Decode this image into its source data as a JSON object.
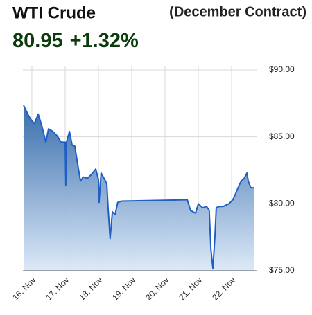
{
  "chart_data": {
    "type": "area",
    "title": "WTI Crude",
    "subtitle": "(December Contract)",
    "price": "80.95",
    "change": "+1.32%",
    "color": "#1f5fc4",
    "grid": true,
    "xlim": [
      15.73,
      22.75
    ],
    "xticks": [
      {
        "value": 16,
        "label": "16. Nov"
      },
      {
        "value": 17,
        "label": "17. Nov"
      },
      {
        "value": 18,
        "label": "18. Nov"
      },
      {
        "value": 19,
        "label": "19. Nov"
      },
      {
        "value": 20,
        "label": "20. Nov"
      },
      {
        "value": 21,
        "label": "21. Nov"
      },
      {
        "value": 22,
        "label": "22. Nov"
      }
    ],
    "ylim": [
      75,
      90
    ],
    "yticks": [
      {
        "value": 75,
        "label": "$75.00"
      },
      {
        "value": 80,
        "label": "$80.00"
      },
      {
        "value": 85,
        "label": "$85.00"
      },
      {
        "value": 90,
        "label": "$90.00"
      }
    ],
    "x": [
      15.75,
      15.83,
      15.92,
      16.0,
      16.08,
      16.19,
      16.29,
      16.42,
      16.5,
      16.63,
      16.75,
      16.88,
      17.0,
      17.02,
      17.04,
      17.13,
      17.21,
      17.29,
      17.38,
      17.46,
      17.54,
      17.67,
      17.79,
      17.92,
      18.0,
      18.02,
      18.08,
      18.17,
      18.25,
      18.29,
      18.35,
      18.42,
      18.5,
      18.58,
      18.69,
      20.67,
      20.77,
      20.92,
      21.0,
      21.13,
      21.25,
      21.33,
      21.38,
      21.44,
      21.5,
      21.54,
      21.63,
      21.75,
      21.92,
      22.04,
      22.13,
      22.21,
      22.29,
      22.38,
      22.46,
      22.5,
      22.58,
      22.67
    ],
    "values": [
      87.36,
      86.95,
      86.5,
      86.2,
      86.0,
      86.7,
      85.9,
      84.6,
      85.6,
      85.4,
      85.1,
      84.6,
      84.6,
      81.4,
      84.6,
      85.4,
      84.4,
      84.3,
      82.9,
      81.7,
      82.0,
      81.9,
      82.2,
      82.6,
      81.8,
      80.1,
      82.3,
      81.9,
      81.5,
      79.7,
      77.4,
      79.4,
      79.2,
      80.1,
      80.2,
      80.3,
      79.5,
      79.3,
      80.0,
      79.7,
      79.8,
      79.5,
      76.6,
      75.15,
      77.6,
      79.7,
      79.8,
      79.8,
      80.0,
      80.3,
      80.8,
      81.3,
      81.7,
      81.9,
      82.3,
      81.7,
      81.2,
      81.2
    ]
  }
}
